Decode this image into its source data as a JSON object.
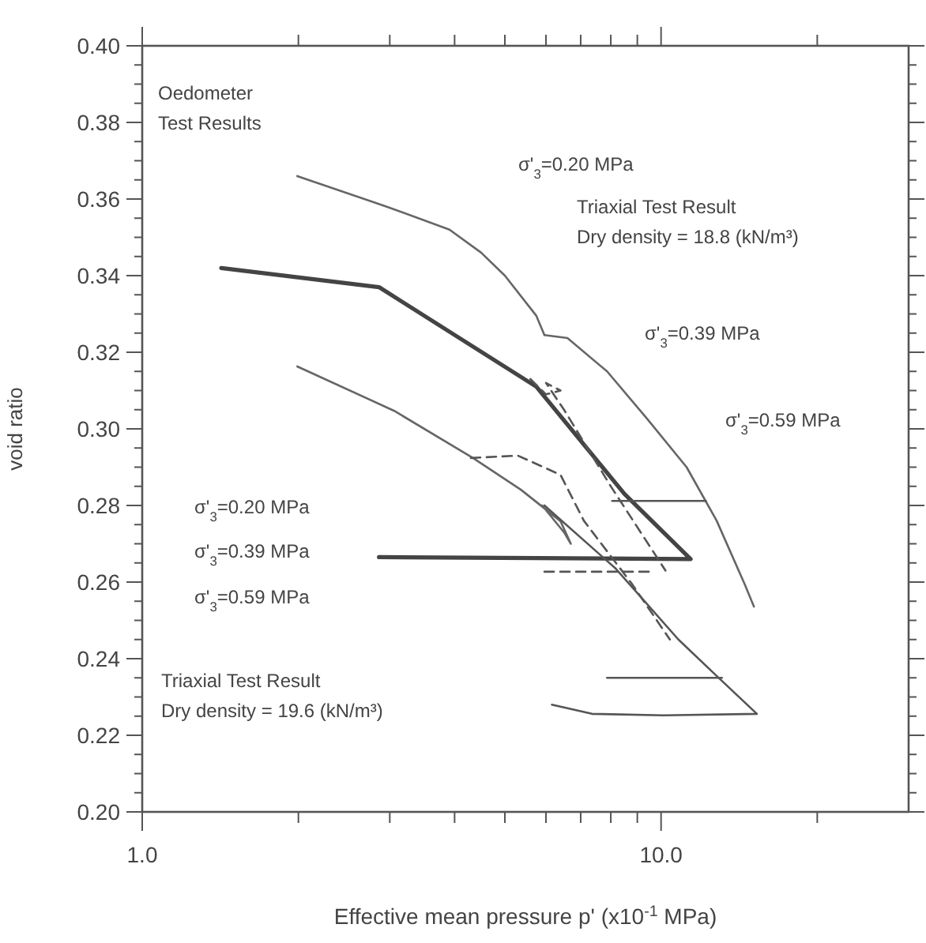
{
  "chart_data": {
    "type": "line",
    "xlabel": "Effective  mean pressure  p' (x10$^{-1}$ MPa)",
    "ylabel": "void ratio",
    "log": "x",
    "grid": false,
    "marker": "none",
    "xlim": [
      1,
      30
    ],
    "ylim": [
      0.2,
      0.4
    ],
    "xticks": [
      {
        "value": 1,
        "label": "1.0"
      },
      {
        "value": 2,
        "label": null
      },
      {
        "value": 3,
        "label": null
      },
      {
        "value": 4,
        "label": null
      },
      {
        "value": 5,
        "label": null
      },
      {
        "value": 6,
        "label": null
      },
      {
        "value": 7,
        "label": null
      },
      {
        "value": 8,
        "label": null
      },
      {
        "value": 9,
        "label": null
      },
      {
        "value": 10,
        "label": "10.0"
      },
      {
        "value": 20,
        "label": null
      }
    ],
    "yticks": [
      {
        "value": 0.2,
        "label": "0.20"
      },
      {
        "value": 0.205,
        "label": null
      },
      {
        "value": 0.21,
        "label": null
      },
      {
        "value": 0.215,
        "label": null
      },
      {
        "value": 0.22,
        "label": "0.22"
      },
      {
        "value": 0.225,
        "label": null
      },
      {
        "value": 0.23,
        "label": null
      },
      {
        "value": 0.235,
        "label": null
      },
      {
        "value": 0.24,
        "label": "0.24"
      },
      {
        "value": 0.245,
        "label": null
      },
      {
        "value": 0.25,
        "label": null
      },
      {
        "value": 0.255,
        "label": null
      },
      {
        "value": 0.26,
        "label": "0.26"
      },
      {
        "value": 0.265,
        "label": null
      },
      {
        "value": 0.27,
        "label": null
      },
      {
        "value": 0.275,
        "label": null
      },
      {
        "value": 0.28,
        "label": "0.28"
      },
      {
        "value": 0.285,
        "label": null
      },
      {
        "value": 0.29,
        "label": null
      },
      {
        "value": 0.295,
        "label": null
      },
      {
        "value": 0.3,
        "label": "0.30"
      },
      {
        "value": 0.305,
        "label": null
      },
      {
        "value": 0.31,
        "label": null
      },
      {
        "value": 0.315,
        "label": null
      },
      {
        "value": 0.32,
        "label": "0.32"
      },
      {
        "value": 0.325,
        "label": null
      },
      {
        "value": 0.33,
        "label": null
      },
      {
        "value": 0.335,
        "label": null
      },
      {
        "value": 0.34,
        "label": "0.34"
      },
      {
        "value": 0.345,
        "label": null
      },
      {
        "value": 0.35,
        "label": null
      },
      {
        "value": 0.355,
        "label": null
      },
      {
        "value": 0.36,
        "label": "0.36"
      },
      {
        "value": 0.365,
        "label": null
      },
      {
        "value": 0.37,
        "label": null
      },
      {
        "value": 0.375,
        "label": null
      },
      {
        "value": 0.38,
        "label": "0.38"
      },
      {
        "value": 0.385,
        "label": null
      },
      {
        "value": 0.39,
        "label": null
      },
      {
        "value": 0.395,
        "label": null
      },
      {
        "value": 0.4,
        "label": "0.40"
      }
    ],
    "series": [
      {
        "color": "#444444",
        "line_style": "solid",
        "x": [
          1.42,
          2.86,
          5.75,
          8.5,
          11.4,
          2.86
        ],
        "values": [
          0.342,
          0.337,
          0.311,
          0.283,
          0.266,
          0.2665
        ]
      },
      {
        "color": "#666666",
        "line_style": "solid",
        "x": [
          1.99,
          2.96,
          3.91,
          4.5,
          5.0,
          5.75,
          5.96
        ],
        "values": [
          0.366,
          0.358,
          0.352,
          0.346,
          0.34,
          0.3295,
          0.3245
        ]
      },
      {
        "color": "#666666",
        "line_style": "solid",
        "x": [
          5.96,
          6.6,
          7.87,
          9.39,
          11.2,
          12.8,
          14.5,
          15.1
        ],
        "values": [
          0.3245,
          0.3237,
          0.315,
          0.3027,
          0.29,
          0.276,
          0.2594,
          0.2536
        ]
      },
      {
        "color": "#555555",
        "line_style": "dashed",
        "x": [
          5.6,
          6.0,
          6.4,
          6.0,
          6.5,
          8.0,
          10.2
        ],
        "values": [
          0.313,
          0.309,
          0.31,
          0.312,
          0.305,
          0.285,
          0.263
        ]
      },
      {
        "color": "#555555",
        "line_style": "solid",
        "x": [
          8.05,
          12.2
        ],
        "values": [
          0.2812,
          0.2812
        ]
      },
      {
        "color": "#555555",
        "line_style": "dashed",
        "x": [
          5.96,
          9.5
        ],
        "values": [
          0.2627,
          0.2627
        ]
      },
      {
        "color": "#555555",
        "line_style": "solid",
        "x": [
          7.87,
          13.1
        ],
        "values": [
          0.235,
          0.235
        ]
      },
      {
        "color": "#666666",
        "line_style": "solid",
        "x": [
          1.99,
          3.06,
          4.34,
          5.37,
          6.4,
          6.7,
          6.5,
          5.9
        ],
        "values": [
          0.3163,
          0.3047,
          0.2924,
          0.2841,
          0.2759,
          0.27,
          0.273,
          0.28
        ]
      },
      {
        "color": "#555555",
        "line_style": "dashed",
        "x": [
          4.3,
          5.3,
          6.4,
          7.1,
          8.8,
          10.4
        ],
        "values": [
          0.2924,
          0.293,
          0.288,
          0.276,
          0.2594,
          0.245
        ]
      },
      {
        "color": "#555555",
        "line_style": "solid",
        "x": [
          5.96,
          8.18,
          10.8,
          12.8,
          15.3,
          10.1,
          7.36,
          6.16
        ],
        "values": [
          0.28,
          0.2635,
          0.245,
          0.2355,
          0.2256,
          0.2252,
          0.2256,
          0.228
        ]
      }
    ],
    "annotations": [
      "Oedometer\nTest Results",
      "σ'$_{3}$=0.20 MPa",
      "Triaxial Test Result\nDry density = 18.8 (kN/m³)",
      "σ'$_{3}$=0.39 MPa",
      "σ'$_{3}$=0.59 MPa",
      "σ'$_{3}$=0.20 MPa",
      "σ'$_{3}$=0.39 MPa",
      "σ'$_{3}$=0.59 MPa",
      "Triaxial Test Result\nDry density = 19.6 (kN/m³)"
    ]
  }
}
